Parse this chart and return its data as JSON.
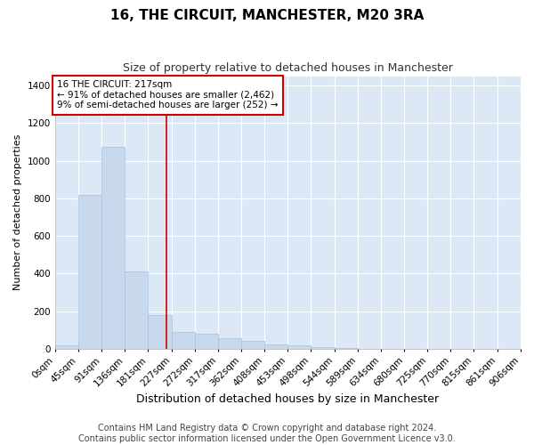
{
  "title": "16, THE CIRCUIT, MANCHESTER, M20 3RA",
  "subtitle": "Size of property relative to detached houses in Manchester",
  "xlabel": "Distribution of detached houses by size in Manchester",
  "ylabel": "Number of detached properties",
  "bar_color": "#c8d9ed",
  "bar_edge_color": "#a8c0de",
  "figure_bg_color": "#ffffff",
  "axes_bg_color": "#dce8f5",
  "grid_color": "#ffffff",
  "annotation_text": "16 THE CIRCUIT: 217sqm\n← 91% of detached houses are smaller (2,462)\n9% of semi-detached houses are larger (252) →",
  "annotation_box_color": "#ffffff",
  "annotation_box_edge": "#cc0000",
  "vline_x": 217,
  "vline_color": "#cc0000",
  "bins": [
    0,
    45,
    91,
    136,
    181,
    227,
    272,
    317,
    362,
    408,
    453,
    498,
    544,
    589,
    634,
    680,
    725,
    770,
    815,
    861,
    906
  ],
  "bar_heights": [
    20,
    820,
    1075,
    410,
    180,
    90,
    80,
    55,
    40,
    25,
    20,
    10,
    5,
    2,
    1,
    0,
    0,
    0,
    0,
    0
  ],
  "ylim": [
    0,
    1450
  ],
  "yticks": [
    0,
    200,
    400,
    600,
    800,
    1000,
    1200,
    1400
  ],
  "footer_text": "Contains HM Land Registry data © Crown copyright and database right 2024.\nContains public sector information licensed under the Open Government Licence v3.0.",
  "title_fontsize": 11,
  "subtitle_fontsize": 9,
  "xlabel_fontsize": 9,
  "ylabel_fontsize": 8,
  "tick_fontsize": 7.5,
  "footer_fontsize": 7
}
